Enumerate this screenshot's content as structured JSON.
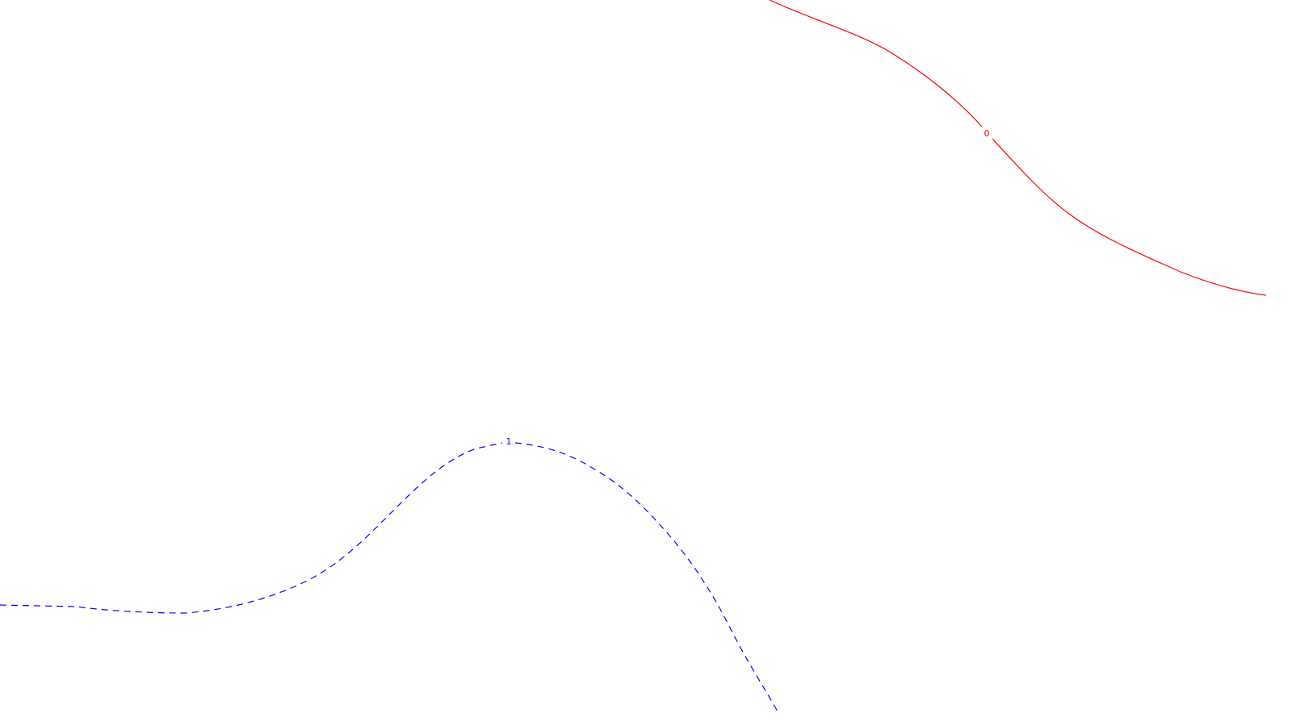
{
  "contours": [
    {
      "label": "0",
      "color": "#ff0000",
      "style": "solid"
    },
    {
      "label": "1",
      "color": "#0000ff",
      "style": "dashed"
    }
  ]
}
